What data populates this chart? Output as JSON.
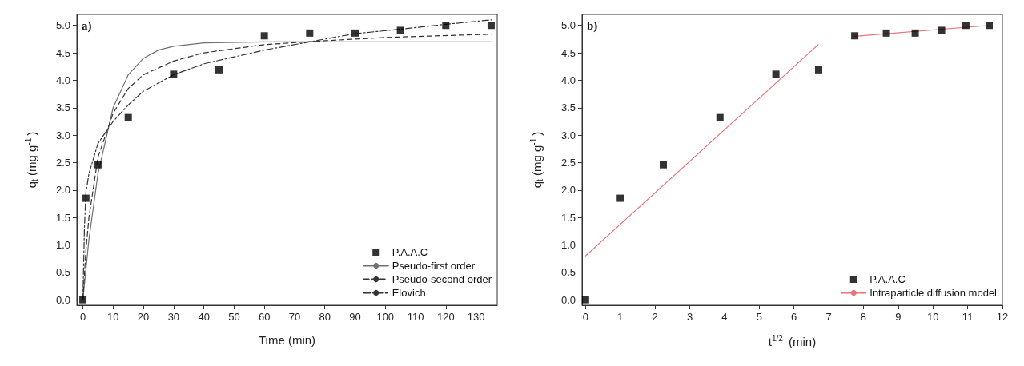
{
  "chart_data": [
    {
      "type": "scatter",
      "annotations": [
        "a)"
      ],
      "xlabel": "Time (min)",
      "ylabel": "q$_{t}$ (mg g$^{-1}$)",
      "xlim": [
        -2,
        137
      ],
      "xticks": [
        0,
        10,
        20,
        30,
        40,
        50,
        60,
        70,
        80,
        90,
        100,
        110,
        120,
        130
      ],
      "ylim": [
        -0.1,
        5.2
      ],
      "yticks": [
        {
          "value": 0,
          "label": "0.0"
        },
        {
          "value": 0.5,
          "label": "0.5"
        },
        {
          "value": 1,
          "label": "1.0"
        },
        {
          "value": 1.5,
          "label": "1.5"
        },
        {
          "value": 2,
          "label": "2.0"
        },
        {
          "value": 2.5,
          "label": "2.5"
        },
        {
          "value": 3,
          "label": "3.0"
        },
        {
          "value": 3.5,
          "label": "3.5"
        },
        {
          "value": 4,
          "label": "4.0"
        },
        {
          "value": 4.5,
          "label": "4.5"
        },
        {
          "value": 5,
          "label": "5.0"
        }
      ],
      "legend": "bottom right",
      "grid": false,
      "series": [
        {
          "name": "P.A.A.C",
          "type": "scatter",
          "marker": "square",
          "color": "#000000",
          "x": [
            0,
            1,
            5,
            15,
            30,
            45,
            60,
            75,
            90,
            105,
            120,
            135
          ],
          "values": [
            0,
            1.85,
            2.46,
            3.32,
            4.11,
            4.19,
            4.81,
            4.86,
            4.86,
            4.91,
            5.0,
            5.0
          ]
        },
        {
          "name": "Pseudo-first order",
          "type": "line",
          "marker": "none",
          "line_style": "solid",
          "color": "#707070",
          "x": [
            0,
            2,
            5,
            10,
            15,
            20,
            25,
            30,
            40,
            60,
            90,
            135
          ],
          "values": [
            0,
            1.1,
            2.3,
            3.5,
            4.1,
            4.4,
            4.55,
            4.62,
            4.68,
            4.7,
            4.7,
            4.7
          ]
        },
        {
          "name": "Pseudo-second order",
          "type": "line",
          "marker": "none",
          "line_style": "dashed",
          "color": "#333333",
          "x": [
            0,
            1,
            2,
            5,
            10,
            15,
            20,
            30,
            40,
            60,
            80,
            100,
            135
          ],
          "values": [
            0,
            0.9,
            1.5,
            2.6,
            3.4,
            3.85,
            4.1,
            4.35,
            4.5,
            4.65,
            4.72,
            4.78,
            4.84
          ]
        },
        {
          "name": "Elovich",
          "type": "line",
          "marker": "none",
          "line_style": "dashdot",
          "color": "#333333",
          "x": [
            0,
            0.5,
            1,
            2,
            5,
            10,
            15,
            20,
            30,
            40,
            60,
            75,
            90,
            105,
            120,
            135
          ],
          "values": [
            0,
            1.3,
            1.95,
            2.3,
            2.85,
            3.25,
            3.55,
            3.8,
            4.1,
            4.3,
            4.55,
            4.7,
            4.85,
            4.93,
            5.02,
            5.1
          ]
        }
      ]
    },
    {
      "type": "scatter",
      "annotations": [
        "b)"
      ],
      "xlabel": "t$^{1/2}$ (min)",
      "ylabel": "q$_{t}$ (mg g$^{-1}$)",
      "xlim": [
        -0.1,
        12
      ],
      "xticks": [
        0,
        1,
        2,
        3,
        4,
        5,
        6,
        7,
        8,
        9,
        10,
        11,
        12
      ],
      "ylim": [
        -0.1,
        5.2
      ],
      "yticks": [
        {
          "value": 0,
          "label": "0.0"
        },
        {
          "value": 0.5,
          "label": "0.5"
        },
        {
          "value": 1,
          "label": "1.0"
        },
        {
          "value": 1.5,
          "label": "1.5"
        },
        {
          "value": 2,
          "label": "2.0"
        },
        {
          "value": 2.5,
          "label": "2.5"
        },
        {
          "value": 3,
          "label": "3.0"
        },
        {
          "value": 3.5,
          "label": "3.5"
        },
        {
          "value": 4,
          "label": "4.0"
        },
        {
          "value": 4.5,
          "label": "4.5"
        },
        {
          "value": 5,
          "label": "5.0"
        }
      ],
      "legend": "bottom right",
      "grid": false,
      "series": [
        {
          "name": "P.A.A.C",
          "type": "scatter",
          "marker": "square",
          "color": "#000000",
          "x": [
            0,
            1,
            2.24,
            3.87,
            5.48,
            6.71,
            7.75,
            8.66,
            9.49,
            10.25,
            10.95,
            11.62
          ],
          "values": [
            0,
            1.85,
            2.46,
            3.32,
            4.11,
            4.19,
            4.81,
            4.86,
            4.86,
            4.91,
            5.0,
            5.0
          ]
        },
        {
          "name": "Intraparticle diffusion model",
          "type": "line",
          "marker": "none",
          "line_style": "solid",
          "color": "#e8737a",
          "x": [
            0,
            6.7
          ],
          "values": [
            0.8,
            4.65
          ]
        },
        {
          "type": "line",
          "marker": "none",
          "line_style": "solid",
          "color": "#e8737a",
          "x": [
            7.75,
            11.62
          ],
          "values": [
            4.8,
            5.0
          ]
        }
      ]
    }
  ]
}
